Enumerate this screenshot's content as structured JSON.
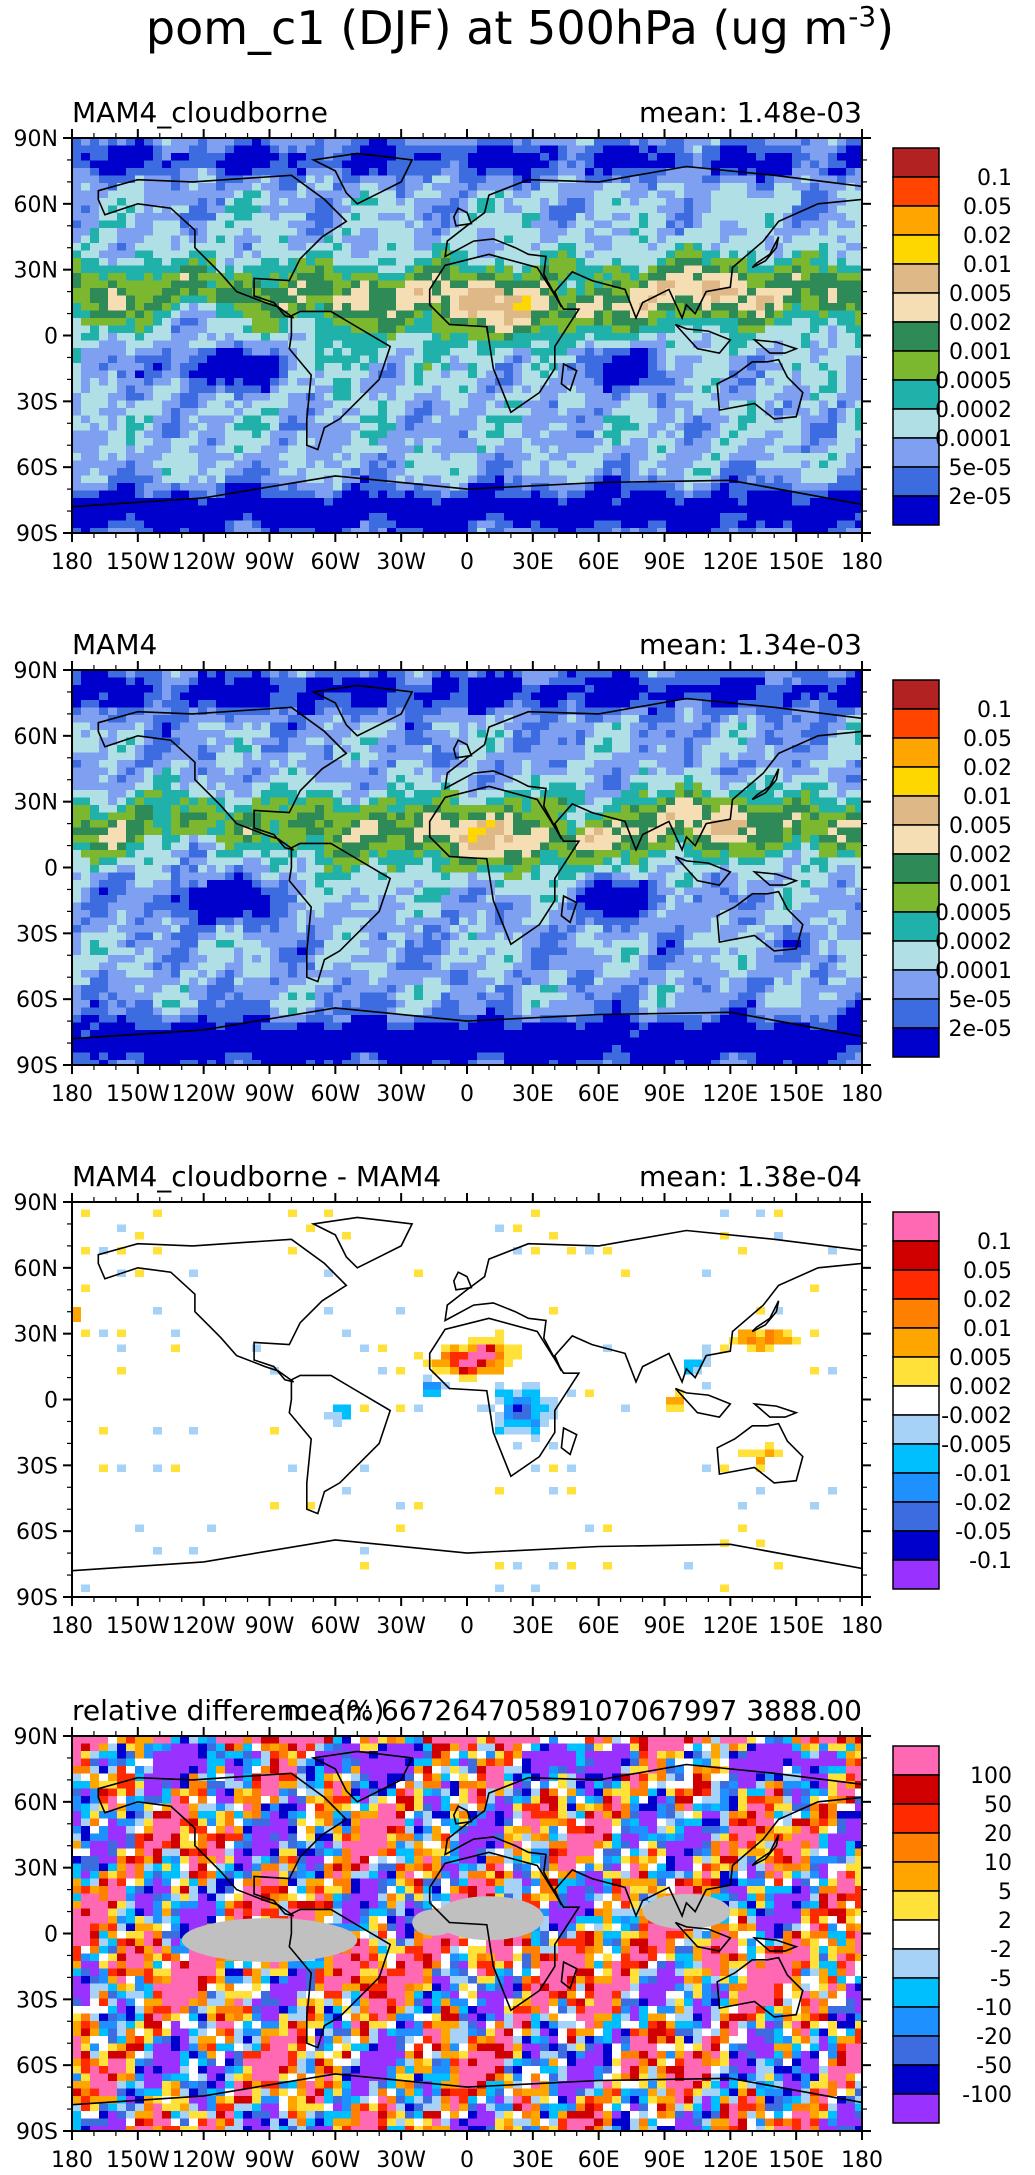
{
  "title": "pom_c1 (DJF) at 500hPa (ug m",
  "title_superscript": "-3",
  "title_close": ")",
  "colors": {
    "seq": [
      "#0000cd",
      "#3d6be0",
      "#7f9ff0",
      "#b0e0e6",
      "#20b2aa",
      "#7cb82f",
      "#2e8b57",
      "#f5deb3",
      "#deb887",
      "#ffd700",
      "#ffa500",
      "#ff4500",
      "#b22222"
    ],
    "diff": [
      "#9932ff",
      "#0000cd",
      "#3d6be0",
      "#1e90ff",
      "#00bfff",
      "#a6d2f7",
      "#ffffff",
      "#ffe13a",
      "#ffa500",
      "#ff7f00",
      "#ff2a00",
      "#d00000",
      "#ff69b4"
    ]
  },
  "lat_ticks": [
    "90N",
    "60N",
    "30N",
    "0",
    "30S",
    "60S",
    "90S"
  ],
  "lon_ticks": [
    "180",
    "150W",
    "120W",
    "90W",
    "60W",
    "30W",
    "0",
    "30E",
    "60E",
    "90E",
    "120E",
    "150E",
    "180"
  ],
  "chart_data": [
    {
      "type": "heatmap",
      "title": "MAM4_cloudborne",
      "mean_label": "mean:  1.48e-03",
      "colorbar_labels": [
        "0.1",
        "0.05",
        "0.02",
        "0.01",
        "0.005",
        "0.002",
        "0.001",
        "0.0005",
        "0.0002",
        "0.0001",
        "5e-05",
        "2e-05"
      ],
      "scale": "seq",
      "seed": 3,
      "offset": 0
    },
    {
      "type": "heatmap",
      "title": "MAM4",
      "mean_label": "mean:  1.34e-03",
      "colorbar_labels": [
        "0.1",
        "0.05",
        "0.02",
        "0.01",
        "0.005",
        "0.002",
        "0.001",
        "0.0005",
        "0.0002",
        "0.0001",
        "5e-05",
        "2e-05"
      ],
      "scale": "seq",
      "seed": 7,
      "offset": -0.3
    },
    {
      "type": "heatmap",
      "title": "MAM4_cloudborne - MAM4",
      "mean_label": "mean:  1.38e-04",
      "colorbar_labels": [
        "0.1",
        "0.05",
        "0.02",
        "0.01",
        "0.005",
        "0.002",
        "-0.002",
        "-0.005",
        "-0.01",
        "-0.02",
        "-0.05",
        "-0.1"
      ],
      "scale": "diff",
      "seed": 11,
      "offset": 0
    },
    {
      "type": "heatmap",
      "title": "relative difference (%)",
      "mean_label": "mean: 66726470589107067997 3888.00",
      "colorbar_labels": [
        "100",
        "50",
        "20",
        "10",
        "5",
        "2",
        "-2",
        "-5",
        "-10",
        "-20",
        "-50",
        "-100"
      ],
      "scale": "rel",
      "seed": 17,
      "offset": 0
    }
  ]
}
